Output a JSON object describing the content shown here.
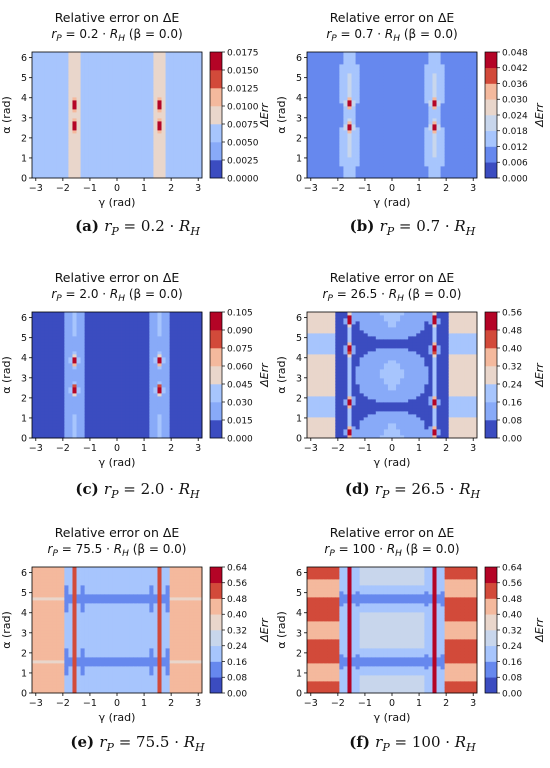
{
  "chart_data": [
    {
      "type": "heatmap",
      "id": "a",
      "title": "Relative error on ΔE",
      "subtitle": {
        "var": "r",
        "sub": "P",
        "value": "0.2",
        "beta": "(β = 0.0)"
      },
      "xlabel": "γ (rad)",
      "ylabel": "α (rad)",
      "colorbar_label": "ΔErr",
      "xlim": [
        -3.14,
        3.14
      ],
      "ylim": [
        0,
        6.28
      ],
      "x_ticks": [
        -3,
        -2,
        -1,
        0,
        1,
        2,
        3
      ],
      "y_ticks": [
        0,
        1,
        2,
        3,
        4,
        5,
        6
      ],
      "levels": [
        0.0,
        0.0025,
        0.005,
        0.0075,
        0.01,
        0.0125,
        0.015,
        0.0175
      ],
      "level_labels": [
        "0.0000",
        "0.0025",
        "0.0050",
        "0.0075",
        "0.0100",
        "0.0125",
        "0.0150",
        "0.0175"
      ],
      "caption": {
        "label": "(a)",
        "value": "0.2"
      }
    },
    {
      "type": "heatmap",
      "id": "b",
      "title": "Relative error on ΔE",
      "subtitle": {
        "var": "r",
        "sub": "P",
        "value": "0.7",
        "beta": "(β = 0.0)"
      },
      "xlabel": "γ (rad)",
      "ylabel": "α (rad)",
      "colorbar_label": "ΔErr",
      "xlim": [
        -3.14,
        3.14
      ],
      "ylim": [
        0,
        6.28
      ],
      "x_ticks": [
        -3,
        -2,
        -1,
        0,
        1,
        2,
        3
      ],
      "y_ticks": [
        0,
        1,
        2,
        3,
        4,
        5,
        6
      ],
      "levels": [
        0.0,
        0.006,
        0.012,
        0.018,
        0.024,
        0.03,
        0.036,
        0.042,
        0.048
      ],
      "level_labels": [
        "0.000",
        "0.006",
        "0.012",
        "0.018",
        "0.024",
        "0.030",
        "0.036",
        "0.042",
        "0.048"
      ],
      "caption": {
        "label": "(b)",
        "value": "0.7"
      }
    },
    {
      "type": "heatmap",
      "id": "c",
      "title": "Relative error on ΔE",
      "subtitle": {
        "var": "r",
        "sub": "P",
        "value": "2.0",
        "beta": "(β = 0.0)"
      },
      "xlabel": "γ (rad)",
      "ylabel": "α (rad)",
      "colorbar_label": "ΔErr",
      "xlim": [
        -3.14,
        3.14
      ],
      "ylim": [
        0,
        6.28
      ],
      "x_ticks": [
        -3,
        -2,
        -1,
        0,
        1,
        2,
        3
      ],
      "y_ticks": [
        0,
        1,
        2,
        3,
        4,
        5,
        6
      ],
      "levels": [
        0.0,
        0.015,
        0.03,
        0.045,
        0.06,
        0.075,
        0.09,
        0.105
      ],
      "level_labels": [
        "0.000",
        "0.015",
        "0.030",
        "0.045",
        "0.060",
        "0.075",
        "0.090",
        "0.105"
      ],
      "caption": {
        "label": "(c)",
        "value": "2.0"
      }
    },
    {
      "type": "heatmap",
      "id": "d",
      "title": "Relative error on ΔE",
      "subtitle": {
        "var": "r",
        "sub": "P",
        "value": "26.5",
        "beta": "(β = 0.0)"
      },
      "xlabel": "γ (rad)",
      "ylabel": "α (rad)",
      "colorbar_label": "ΔErr",
      "xlim": [
        -3.14,
        3.14
      ],
      "ylim": [
        0,
        6.28
      ],
      "x_ticks": [
        -3,
        -2,
        -1,
        0,
        1,
        2,
        3
      ],
      "y_ticks": [
        0,
        1,
        2,
        3,
        4,
        5,
        6
      ],
      "levels": [
        0.0,
        0.08,
        0.16,
        0.24,
        0.32,
        0.4,
        0.48,
        0.56
      ],
      "level_labels": [
        "0.00",
        "0.08",
        "0.16",
        "0.24",
        "0.32",
        "0.40",
        "0.48",
        "0.56"
      ],
      "caption": {
        "label": "(d)",
        "value": "26.5"
      }
    },
    {
      "type": "heatmap",
      "id": "e",
      "title": "Relative error on ΔE",
      "subtitle": {
        "var": "r",
        "sub": "P",
        "value": "75.5",
        "beta": "(β = 0.0)"
      },
      "xlabel": "γ (rad)",
      "ylabel": "α (rad)",
      "colorbar_label": "ΔErr",
      "xlim": [
        -3.14,
        3.14
      ],
      "ylim": [
        0,
        6.28
      ],
      "x_ticks": [
        -3,
        -2,
        -1,
        0,
        1,
        2,
        3
      ],
      "y_ticks": [
        0,
        1,
        2,
        3,
        4,
        5,
        6
      ],
      "levels": [
        0.0,
        0.08,
        0.16,
        0.24,
        0.32,
        0.4,
        0.48,
        0.56,
        0.64
      ],
      "level_labels": [
        "0.00",
        "0.08",
        "0.16",
        "0.24",
        "0.32",
        "0.40",
        "0.48",
        "0.56",
        "0.64"
      ],
      "caption": {
        "label": "(e)",
        "value": "75.5"
      }
    },
    {
      "type": "heatmap",
      "id": "f",
      "title": "Relative error on ΔE",
      "subtitle": {
        "var": "r",
        "sub": "P",
        "value": "100",
        "beta": "(β = 0.0)"
      },
      "xlabel": "γ (rad)",
      "ylabel": "α (rad)",
      "colorbar_label": "ΔErr",
      "xlim": [
        -3.14,
        3.14
      ],
      "ylim": [
        0,
        6.28
      ],
      "x_ticks": [
        -3,
        -2,
        -1,
        0,
        1,
        2,
        3
      ],
      "y_ticks": [
        0,
        1,
        2,
        3,
        4,
        5,
        6
      ],
      "levels": [
        0.0,
        0.08,
        0.16,
        0.24,
        0.32,
        0.4,
        0.48,
        0.56,
        0.64
      ],
      "level_labels": [
        "0.00",
        "0.08",
        "0.16",
        "0.24",
        "0.32",
        "0.40",
        "0.48",
        "0.56",
        "0.64"
      ],
      "caption": {
        "label": "(f)",
        "value": "100"
      }
    }
  ],
  "colormap": [
    "#3b4cc0",
    "#6688ee",
    "#88aaf8",
    "#a7c5fd",
    "#c8d6ec",
    "#e9d6cb",
    "#f4b99d",
    "#ea8a68",
    "#d24a3a",
    "#b40426"
  ]
}
